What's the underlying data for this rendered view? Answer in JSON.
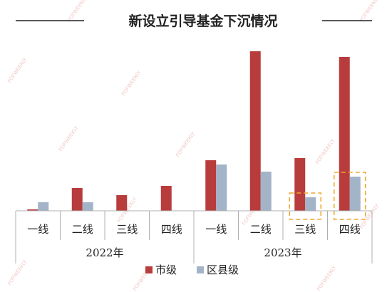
{
  "chart_data": {
    "type": "bar",
    "title": "新设立引导基金下沉情况",
    "groups": [
      {
        "label": "2022年",
        "categories": [
          "一线",
          "二线",
          "三线",
          "四线"
        ]
      },
      {
        "label": "2023年",
        "categories": [
          "一线",
          "二线",
          "三线",
          "四线"
        ]
      }
    ],
    "series": [
      {
        "name": "市级",
        "color": "#b83c3c",
        "values": [
          2,
          32,
          22,
          35,
          71,
          224,
          74,
          216
        ]
      },
      {
        "name": "区县级",
        "color": "#a3b3c8",
        "values": [
          12,
          12,
          0,
          0,
          65,
          55,
          19,
          48
        ]
      }
    ],
    "highlighted_categories": [
      6,
      7
    ],
    "highlight_color": "#f0a830",
    "ylim": [
      0,
      230
    ],
    "grid": false,
    "legend_position": "bottom"
  },
  "watermark": "FOFWEEKLY"
}
